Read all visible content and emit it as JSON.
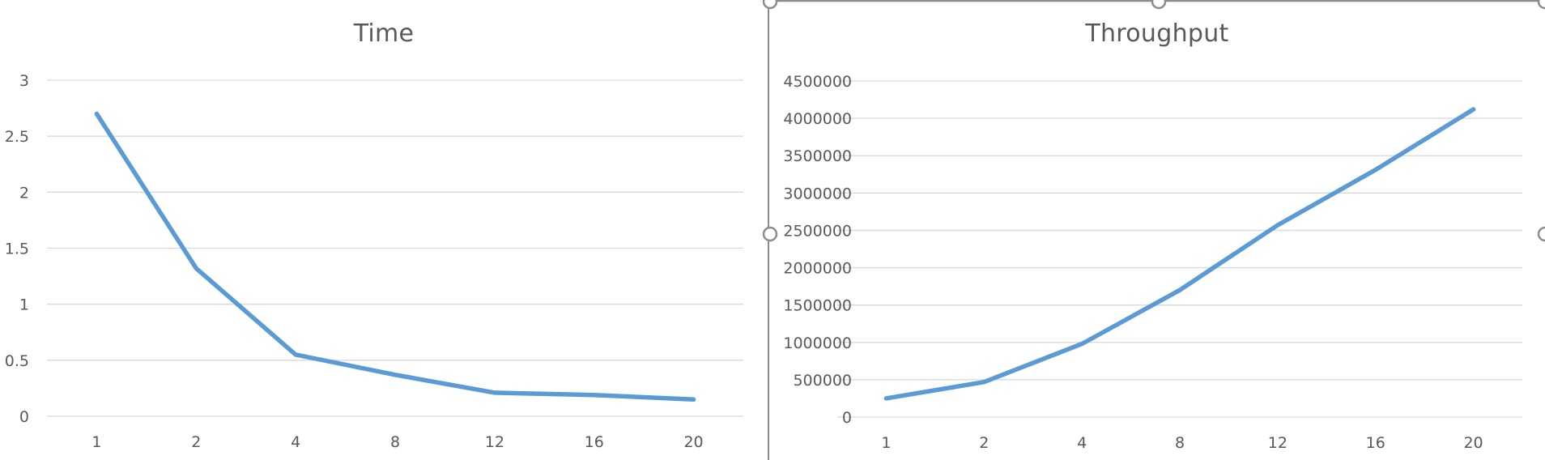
{
  "colors": {
    "series": "#5b9bd5",
    "grid": "#d9d9d9",
    "text": "#595959",
    "selection": "#8c8c8c"
  },
  "chart_data": [
    {
      "type": "line",
      "title": "Time",
      "xlabel": "",
      "ylabel": "",
      "categories": [
        "1",
        "2",
        "4",
        "8",
        "12",
        "16",
        "20"
      ],
      "series": [
        {
          "values": [
            2.7,
            1.32,
            0.55,
            0.37,
            0.21,
            0.19,
            0.15
          ]
        }
      ],
      "ylim": [
        0,
        3
      ],
      "yticks": [
        "0",
        "0.5",
        "1",
        "1.5",
        "2",
        "2.5",
        "3"
      ],
      "ytick_values": [
        0,
        0.5,
        1,
        1.5,
        2,
        2.5,
        3
      ],
      "grid": true,
      "legend": "none"
    },
    {
      "type": "line",
      "title": "Throughput",
      "xlabel": "",
      "ylabel": "",
      "categories": [
        "1",
        "2",
        "4",
        "8",
        "12",
        "16",
        "20"
      ],
      "series": [
        {
          "values": [
            250000,
            470000,
            980000,
            1700000,
            2570000,
            3310000,
            4120000
          ]
        }
      ],
      "ylim": [
        0,
        4500000
      ],
      "yticks": [
        "0",
        "500000",
        "1000000",
        "1500000",
        "2000000",
        "2500000",
        "3000000",
        "3500000",
        "4000000",
        "4500000"
      ],
      "ytick_values": [
        0,
        500000,
        1000000,
        1500000,
        2000000,
        2500000,
        3000000,
        3500000,
        4000000,
        4500000
      ],
      "grid": true,
      "legend": "none",
      "selected": true
    }
  ]
}
